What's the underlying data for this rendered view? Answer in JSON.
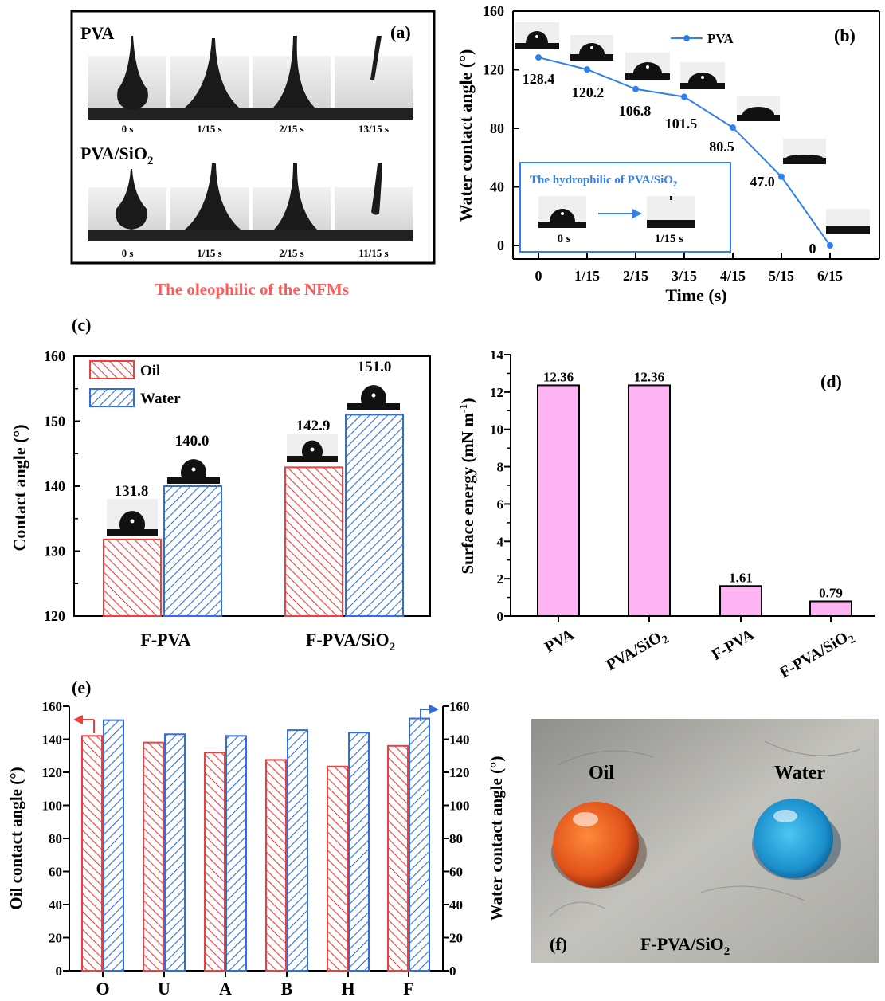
{
  "panel_a": {
    "label": "(a)",
    "row1_title": "PVA",
    "row2_title_main": "PVA/SiO",
    "row2_title_sub": "2",
    "row1_times": [
      "0 s",
      "1/15 s",
      "2/15 s",
      "13/15 s"
    ],
    "row2_times": [
      "0 s",
      "1/15 s",
      "2/15 s",
      "11/15 s"
    ],
    "caption": "The oleophilic of the NFMs",
    "caption_color": "#ff5a5a"
  },
  "panel_f": {
    "label": "(f)",
    "oil_label": "Oil",
    "water_label": "Water",
    "material_main": "F-PVA/SiO",
    "material_sub": "2",
    "oil_color": "#e8521a",
    "water_color": "#1ea0d8"
  },
  "colors": {
    "oil_red": "#ef3e3e",
    "water_blue": "#2f6de0",
    "line_blue": "#2f80ed",
    "bar_pink": "#fcb5f2"
  },
  "chart_data": [
    {
      "id": "b",
      "label": "(b)",
      "type": "line",
      "x": [
        "0",
        "1/15",
        "2/15",
        "3/15",
        "4/15",
        "5/15",
        "6/15"
      ],
      "values": [
        128.4,
        120.2,
        106.8,
        101.5,
        80.5,
        47.0,
        0
      ],
      "data_labels": [
        "128.4",
        "120.2",
        "106.8",
        "101.5",
        "80.5",
        "47.0",
        "0"
      ],
      "xlabel": "Time (s)",
      "ylabel": "Water contact angle (°)",
      "ylim": [
        0,
        160
      ],
      "yticks": [
        "0",
        "40",
        "80",
        "120",
        "160"
      ],
      "legend": "PVA",
      "inset_title_main": "The hydrophilic of PVA/SiO",
      "inset_title_sub": "2",
      "inset_times": [
        "0 s",
        "1/15 s"
      ]
    },
    {
      "id": "c",
      "label": "(c)",
      "type": "bar",
      "categories": [
        "F-PVA",
        "F-PVA/SiO2"
      ],
      "category_labels": [
        {
          "main": "F-PVA",
          "sub": ""
        },
        {
          "main": "F-PVA/SiO",
          "sub": "2"
        }
      ],
      "series": [
        {
          "name": "Oil",
          "values": [
            131.8,
            142.9
          ],
          "labels": [
            "131.8",
            "142.9"
          ]
        },
        {
          "name": "Water",
          "values": [
            140.0,
            151.0
          ],
          "labels": [
            "140.0",
            "151.0"
          ]
        }
      ],
      "ylabel": "Contact angle (°)",
      "ylim": [
        120,
        160
      ],
      "yticks": [
        "120",
        "130",
        "140",
        "150",
        "160"
      ]
    },
    {
      "id": "d",
      "label": "(d)",
      "type": "bar",
      "categories": [
        "PVA",
        "PVA/SiO2",
        "F-PVA",
        "F-PVA/SiO2"
      ],
      "category_labels": [
        {
          "main": "PVA",
          "sub": ""
        },
        {
          "main": "PVA/SiO",
          "sub": "2"
        },
        {
          "main": "F-PVA",
          "sub": ""
        },
        {
          "main": "F-PVA/SiO",
          "sub": "2"
        }
      ],
      "values": [
        12.36,
        12.36,
        1.61,
        0.79
      ],
      "value_labels": [
        "12.36",
        "12.36",
        "1.61",
        "0.79"
      ],
      "ylabel": "Surface energy (mN m-1)",
      "ylabel_main": "Surface energy  (mN m",
      "ylabel_sup": "-1",
      "ylabel_end": ")",
      "ylim": [
        0,
        14
      ],
      "yticks": [
        "0",
        "2",
        "4",
        "6",
        "8",
        "10",
        "12",
        "14"
      ]
    },
    {
      "id": "e",
      "label": "(e)",
      "type": "bar",
      "categories": [
        "O",
        "U",
        "A",
        "B",
        "H",
        "F"
      ],
      "series": [
        {
          "name": "Oil contact angle",
          "axis": "left",
          "values": [
            142,
            138,
            132,
            127.5,
            123.5,
            136
          ]
        },
        {
          "name": "Water contact angle",
          "axis": "right",
          "values": [
            151.5,
            143,
            142,
            145.5,
            144,
            152.5
          ]
        }
      ],
      "ylabel_left": "Oil contact angle (°)",
      "ylabel_right": "Water contact angle (°)",
      "ylim": [
        0,
        160
      ],
      "yticks": [
        "0",
        "20",
        "40",
        "60",
        "80",
        "100",
        "120",
        "140",
        "160"
      ]
    }
  ]
}
